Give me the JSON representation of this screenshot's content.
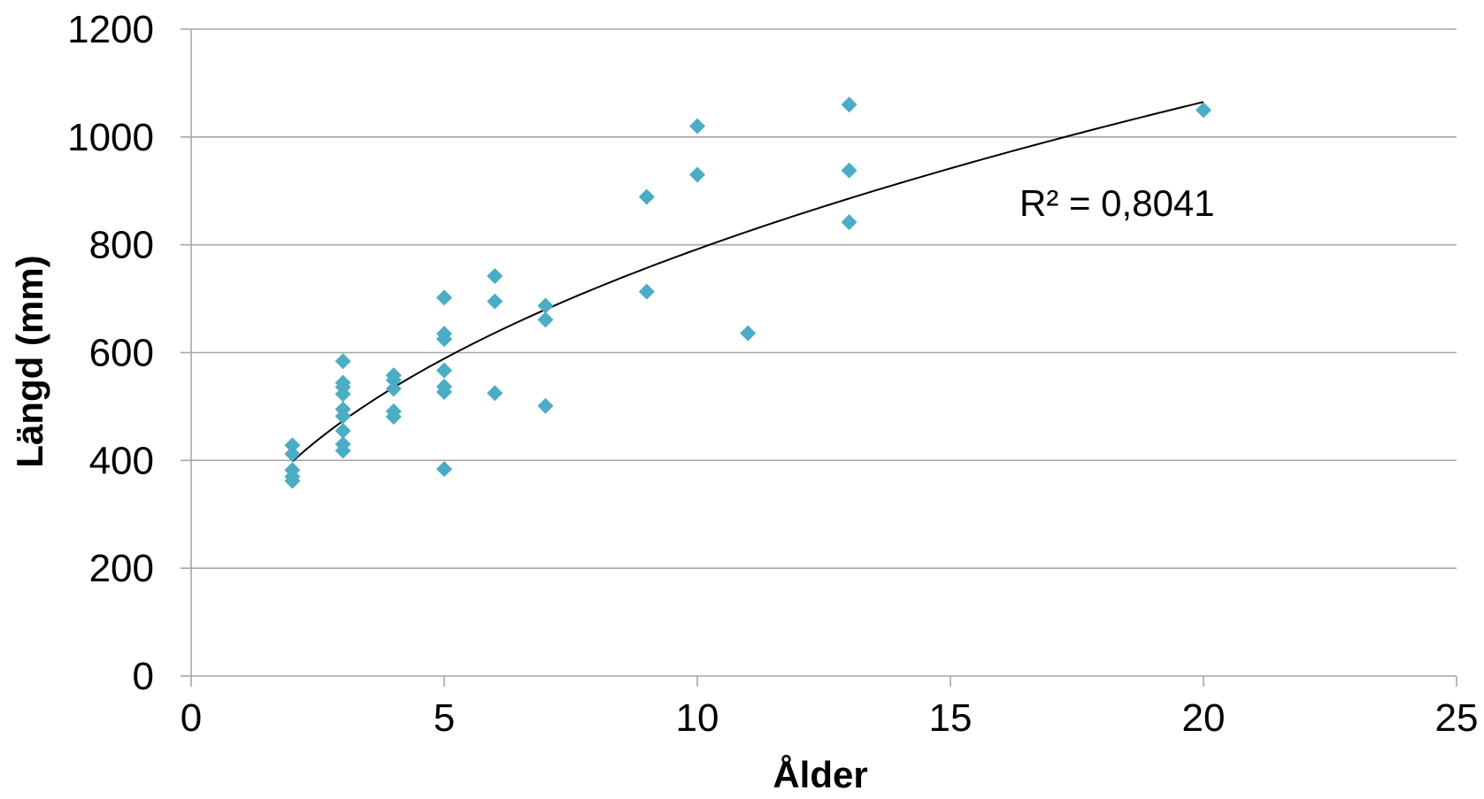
{
  "chart_data": {
    "type": "scatter",
    "xlabel": "Ålder",
    "ylabel": "Längd (mm)",
    "xlim": [
      0,
      25
    ],
    "ylim": [
      0,
      1200
    ],
    "x_ticks": [
      "0",
      "5",
      "10",
      "15",
      "20",
      "25"
    ],
    "y_ticks": [
      "0",
      "200",
      "400",
      "600",
      "800",
      "1000",
      "1200"
    ],
    "grid": "horizontal",
    "marker": "diamond",
    "marker_color": "#4BACC6",
    "gridline_color": "#A6A6A6",
    "trendline": {
      "type": "power",
      "x_range": [
        2,
        20
      ],
      "y_range": [
        398,
        1065
      ],
      "color": "#000000",
      "label": "R² = 0,8041"
    },
    "series": [
      {
        "points": [
          [
            2,
            428
          ],
          [
            2,
            412
          ],
          [
            2,
            382
          ],
          [
            2,
            370
          ],
          [
            2,
            362
          ],
          [
            3,
            584
          ],
          [
            3,
            544
          ],
          [
            3,
            536
          ],
          [
            3,
            523
          ],
          [
            3,
            495
          ],
          [
            3,
            482
          ],
          [
            3,
            455
          ],
          [
            3,
            430
          ],
          [
            3,
            418
          ],
          [
            4,
            558
          ],
          [
            4,
            549
          ],
          [
            4,
            533
          ],
          [
            4,
            491
          ],
          [
            4,
            481
          ],
          [
            5,
            702
          ],
          [
            5,
            635
          ],
          [
            5,
            625
          ],
          [
            5,
            567
          ],
          [
            5,
            537
          ],
          [
            5,
            527
          ],
          [
            5,
            384
          ],
          [
            6,
            742
          ],
          [
            6,
            695
          ],
          [
            6,
            525
          ],
          [
            7,
            687
          ],
          [
            7,
            661
          ],
          [
            7,
            501
          ],
          [
            9,
            889
          ],
          [
            9,
            713
          ],
          [
            10,
            1020
          ],
          [
            10,
            930
          ],
          [
            11,
            636
          ],
          [
            13,
            1060
          ],
          [
            13,
            938
          ],
          [
            13,
            842
          ],
          [
            20,
            1050
          ]
        ]
      }
    ]
  }
}
